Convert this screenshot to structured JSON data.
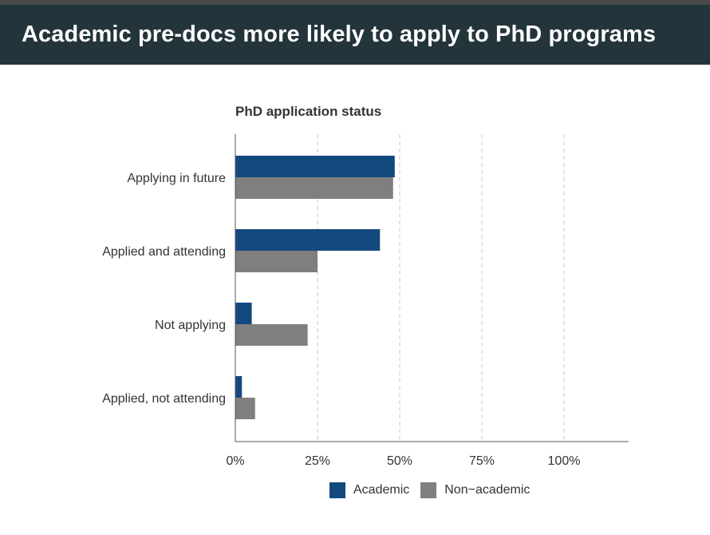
{
  "banner": {
    "title": "Academic pre-docs more likely to apply to PhD programs"
  },
  "colors": {
    "banner_bg": "#23353b",
    "academic": "#14497f",
    "non_academic": "#7f7f7f"
  },
  "chart_data": {
    "type": "bar",
    "orientation": "horizontal",
    "title": "PhD application status",
    "categories": [
      "Applying in future",
      "Applied and attending",
      "Not applying",
      "Applied, not attending"
    ],
    "series": [
      {
        "name": "Academic",
        "color": "#14497f",
        "values": [
          48.5,
          44,
          5,
          2
        ]
      },
      {
        "name": "Non−academic",
        "color": "#7f7f7f",
        "values": [
          48,
          25,
          22,
          6
        ]
      }
    ],
    "xlim": [
      0,
      120
    ],
    "xticks": [
      0,
      25,
      50,
      75,
      100
    ],
    "xtick_labels": [
      "0%",
      "25%",
      "50%",
      "75%",
      "100%"
    ],
    "grid": "vertical-dashed",
    "legend": "bottom"
  }
}
